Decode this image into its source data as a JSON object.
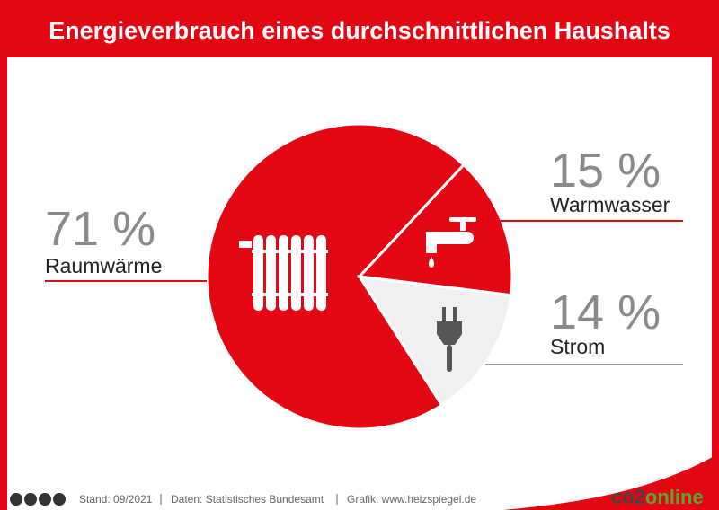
{
  "chart_data": {
    "type": "pie",
    "title": "Energieverbrauch eines durchschnittlichen Haushalts",
    "categories": [
      "Raumwärme",
      "Warmwasser",
      "Strom"
    ],
    "values": [
      71,
      15,
      14
    ],
    "value_labels": [
      "71 %",
      "15 %",
      "14 %"
    ],
    "colors": [
      "#e30613",
      "#e30613",
      "#f0f0f0"
    ]
  },
  "footer": {
    "stand": "Stand: 09/2021",
    "daten": "Daten: Statistisches Bundesamt",
    "grafik": "Grafik: www.heizspiegel.de",
    "logo": [
      "co2",
      "online"
    ]
  }
}
